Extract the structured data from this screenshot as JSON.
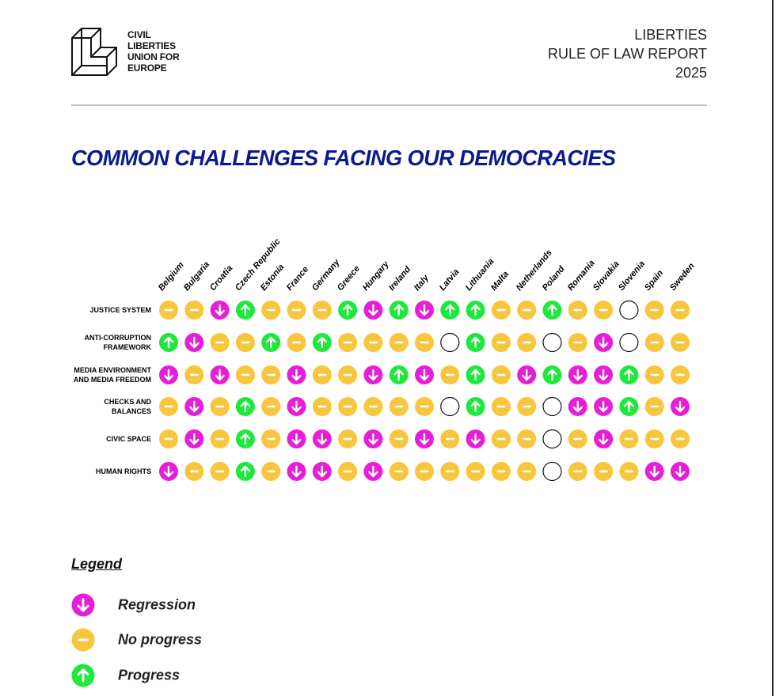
{
  "header": {
    "logo_text": "CIVIL\nLIBERTIES\nUNION FOR\nEUROPE",
    "report": "LIBERTIES\nRULE OF LAW REPORT\n2025"
  },
  "title": "COMMON CHALLENGES FACING OUR DEMOCRACIES",
  "grid": {
    "countries": [
      "Belgium",
      "Bulgaria",
      "Croatia",
      "Czech Republic",
      "Estonia",
      "France",
      "Germany",
      "Greece",
      "Hungary",
      "Ireland",
      "Italy",
      "Latvia",
      "Lithuania",
      "Malta",
      "Netherlands",
      "Poland",
      "Romania",
      "Slovakia",
      "Slovenia",
      "Spain",
      "Sweden"
    ],
    "rows": [
      {
        "label": "JUSTICE SYSTEM",
        "cells": [
          1,
          1,
          0,
          2,
          1,
          1,
          1,
          2,
          0,
          2,
          0,
          2,
          2,
          1,
          1,
          2,
          1,
          1,
          null,
          1,
          1
        ]
      },
      {
        "label": "ANTI-CORRUPTION\nFRAMEWORK",
        "cells": [
          2,
          0,
          1,
          1,
          2,
          1,
          2,
          1,
          1,
          1,
          1,
          null,
          2,
          1,
          1,
          null,
          1,
          0,
          null,
          1,
          1
        ]
      },
      {
        "label": "MEDIA ENVIRONMENT\nAND MEDIA FREEDOM",
        "cells": [
          0,
          1,
          0,
          1,
          1,
          0,
          1,
          1,
          0,
          2,
          0,
          1,
          2,
          1,
          0,
          2,
          0,
          0,
          2,
          1,
          1
        ]
      },
      {
        "label": "CHECKS AND\nBALANCES",
        "cells": [
          1,
          0,
          1,
          2,
          1,
          0,
          1,
          1,
          1,
          1,
          1,
          null,
          2,
          1,
          1,
          null,
          0,
          0,
          2,
          1,
          0
        ]
      },
      {
        "label": "CIVIC SPACE",
        "cells": [
          1,
          0,
          1,
          2,
          1,
          0,
          0,
          1,
          0,
          1,
          0,
          1,
          0,
          1,
          1,
          null,
          1,
          0,
          1,
          1,
          1
        ]
      },
      {
        "label": "HUMAN RIGHTS",
        "cells": [
          0,
          1,
          1,
          2,
          1,
          0,
          0,
          1,
          0,
          1,
          1,
          1,
          1,
          1,
          1,
          null,
          1,
          1,
          1,
          0,
          0
        ]
      }
    ]
  },
  "legend": {
    "title": "Legend",
    "items": [
      {
        "text": "Regression",
        "color": "#e61ed6"
      },
      {
        "text": "No progress",
        "color": "#f8c63d"
      },
      {
        "text": "Progress",
        "color": "#1fe83d"
      }
    ]
  }
}
